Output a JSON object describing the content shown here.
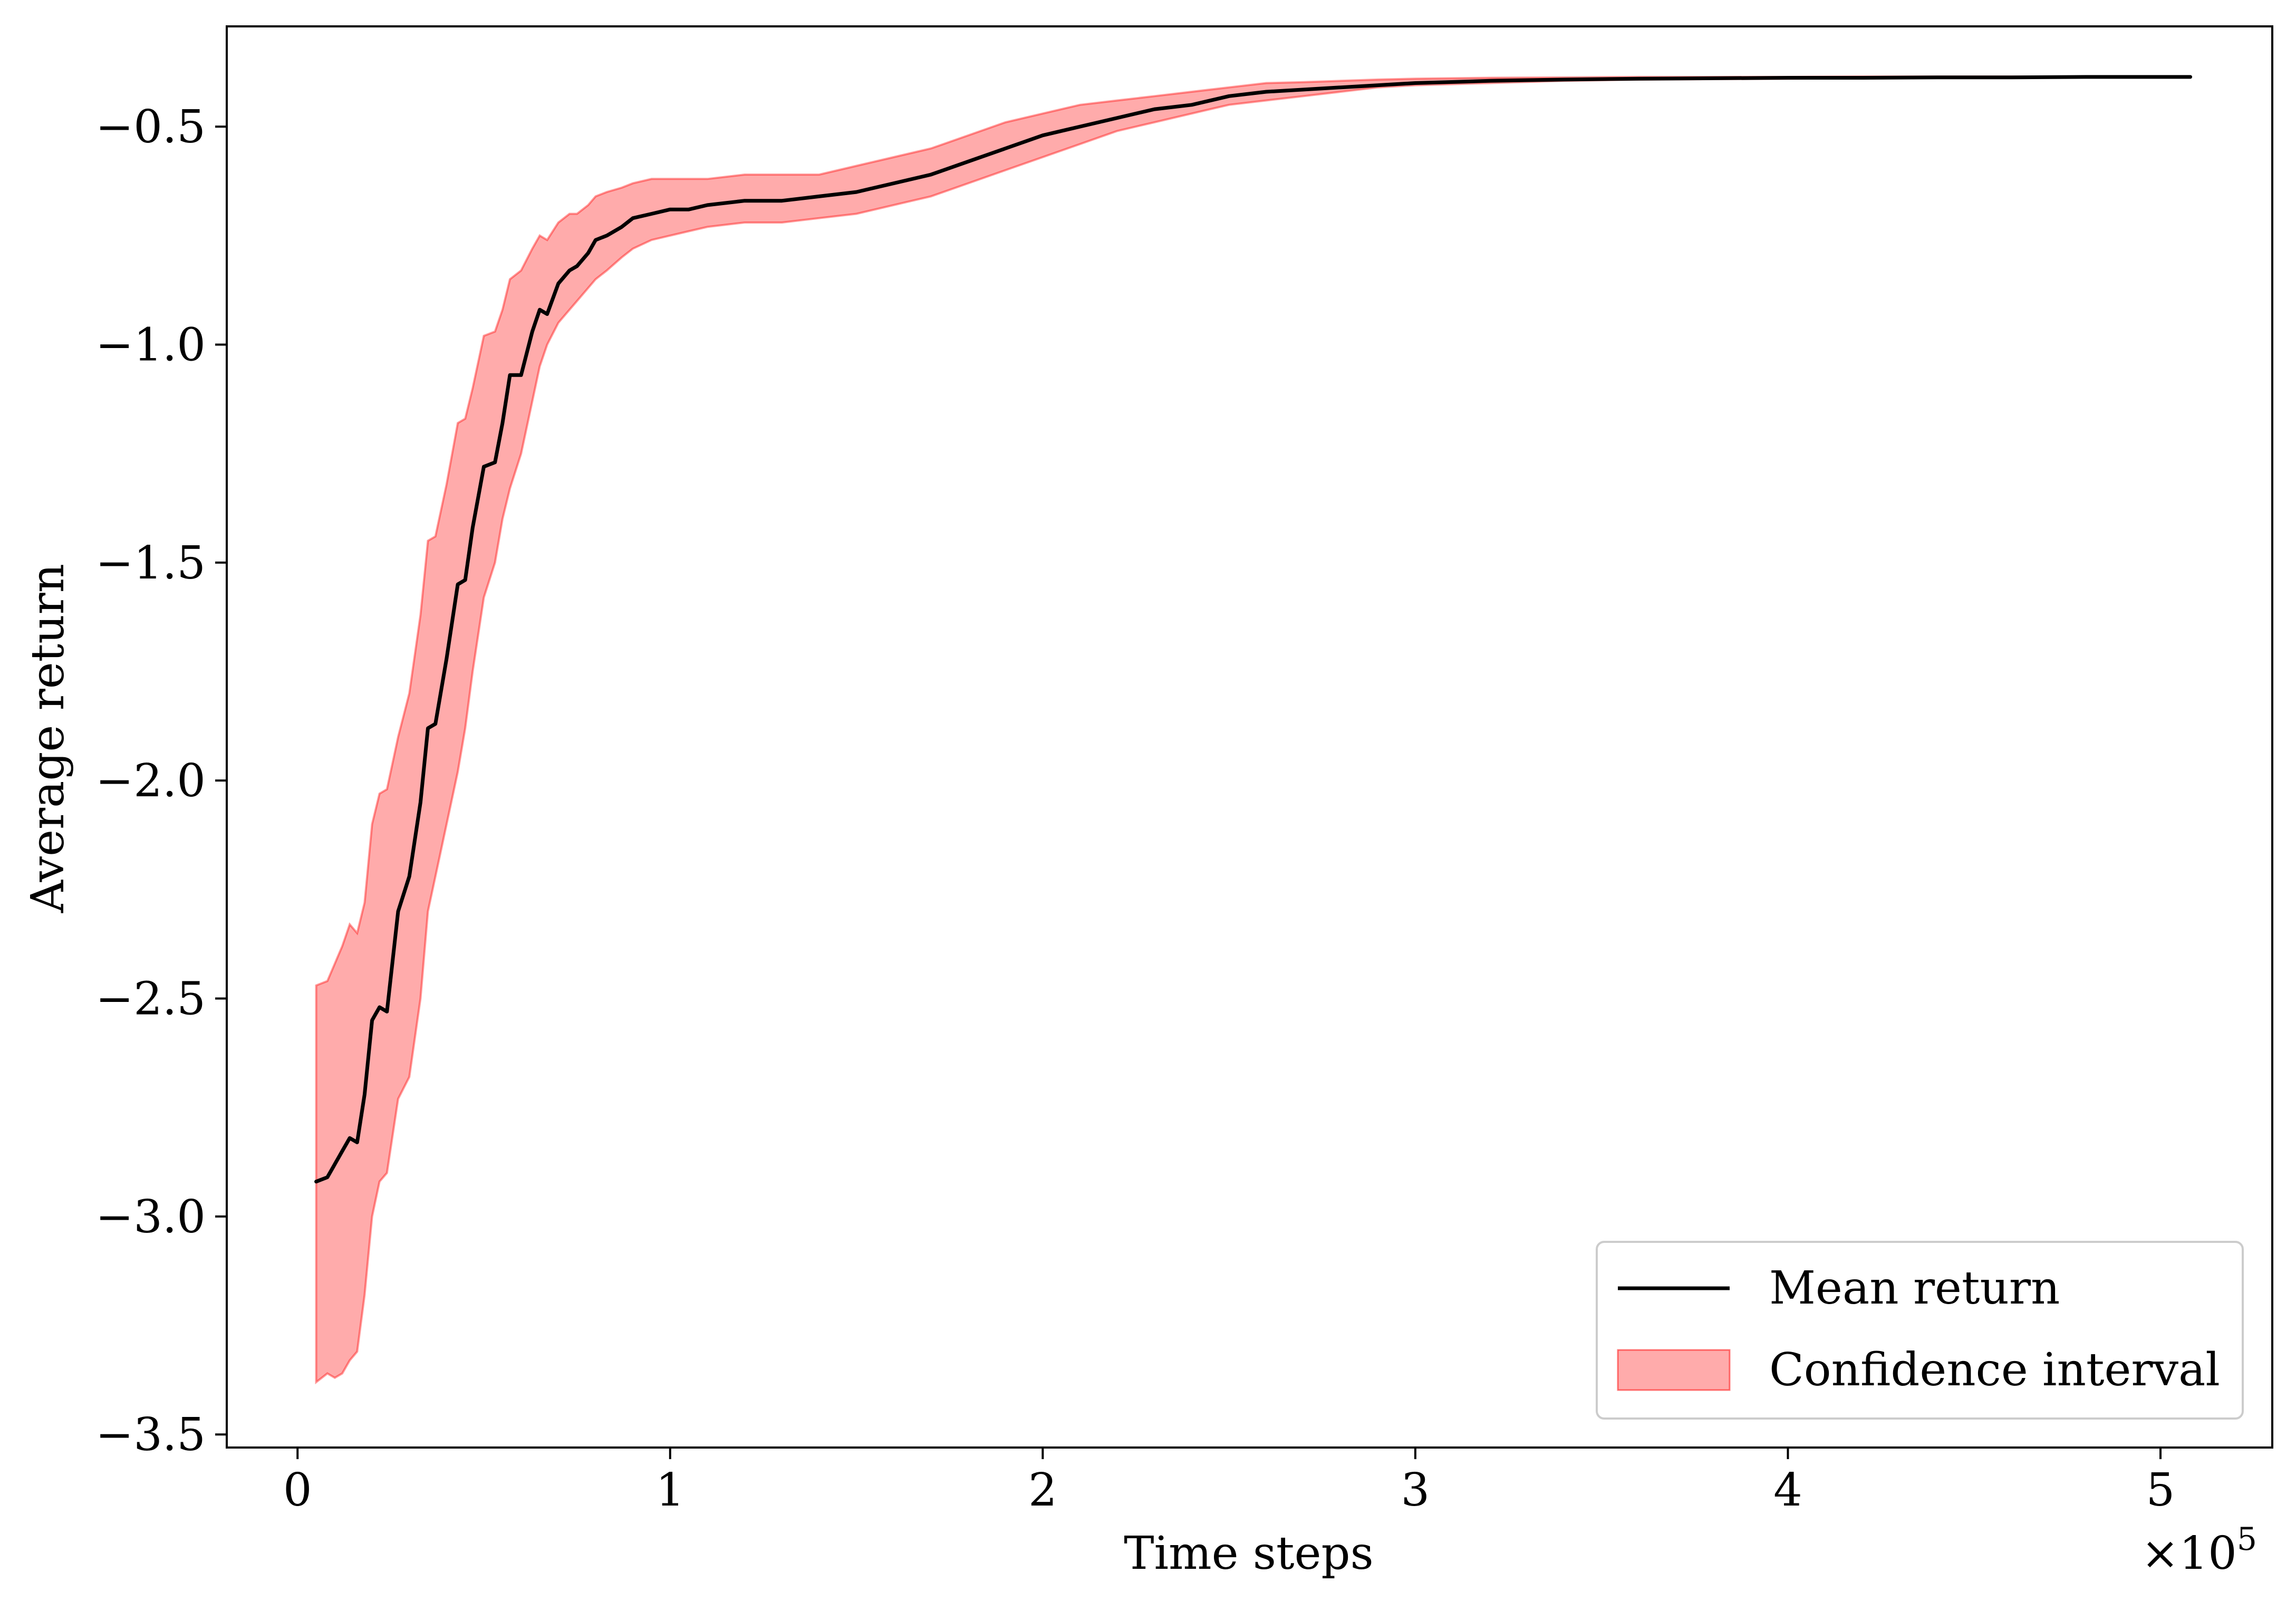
{
  "chart_data": {
    "type": "line",
    "title": "",
    "xlabel": "Time steps",
    "ylabel": "Average return",
    "x_multiplier_label": "×10",
    "x_multiplier_exponent": "5",
    "xlim": [
      -0.19,
      5.3
    ],
    "ylim": [
      -3.53,
      -0.27
    ],
    "x_ticks": [
      0,
      1,
      2,
      3,
      4,
      5
    ],
    "x_tick_labels": [
      "0",
      "1",
      "2",
      "3",
      "4",
      "5"
    ],
    "y_ticks": [
      -0.5,
      -1.0,
      -1.5,
      -2.0,
      -2.5,
      -3.0,
      -3.5
    ],
    "y_tick_labels": [
      "−0.5",
      "−1.0",
      "−1.5",
      "−2.0",
      "−2.5",
      "−3.0",
      "−3.5"
    ],
    "grid": false,
    "legend_position": "bottom-right",
    "series": [
      {
        "name": "Mean return",
        "kind": "line",
        "color": "#000000",
        "x": [
          0.05,
          0.08,
          0.1,
          0.12,
          0.14,
          0.16,
          0.18,
          0.2,
          0.22,
          0.24,
          0.27,
          0.3,
          0.33,
          0.35,
          0.37,
          0.4,
          0.43,
          0.45,
          0.47,
          0.5,
          0.53,
          0.55,
          0.57,
          0.6,
          0.63,
          0.65,
          0.67,
          0.7,
          0.73,
          0.75,
          0.78,
          0.8,
          0.83,
          0.87,
          0.9,
          0.95,
          1.0,
          1.05,
          1.1,
          1.2,
          1.3,
          1.4,
          1.5,
          1.6,
          1.7,
          1.8,
          1.9,
          2.0,
          2.1,
          2.2,
          2.3,
          2.4,
          2.5,
          2.6,
          2.7,
          2.8,
          2.9,
          3.0,
          3.2,
          3.4,
          3.6,
          3.8,
          4.0,
          4.2,
          4.4,
          4.6,
          4.8,
          5.0,
          5.08
        ],
        "y": [
          -2.92,
          -2.91,
          -2.88,
          -2.85,
          -2.82,
          -2.83,
          -2.72,
          -2.55,
          -2.52,
          -2.53,
          -2.3,
          -2.22,
          -2.05,
          -1.88,
          -1.87,
          -1.72,
          -1.55,
          -1.54,
          -1.42,
          -1.28,
          -1.27,
          -1.18,
          -1.07,
          -1.07,
          -0.97,
          -0.92,
          -0.93,
          -0.86,
          -0.83,
          -0.82,
          -0.79,
          -0.76,
          -0.75,
          -0.73,
          -0.71,
          -0.7,
          -0.69,
          -0.69,
          -0.68,
          -0.67,
          -0.67,
          -0.66,
          -0.65,
          -0.63,
          -0.61,
          -0.58,
          -0.55,
          -0.52,
          -0.5,
          -0.48,
          -0.46,
          -0.45,
          -0.43,
          -0.42,
          -0.415,
          -0.41,
          -0.405,
          -0.4,
          -0.395,
          -0.392,
          -0.39,
          -0.389,
          -0.388,
          -0.388,
          -0.387,
          -0.387,
          -0.386,
          -0.386,
          -0.386
        ]
      },
      {
        "name": "Confidence interval",
        "kind": "band",
        "color": "#ff0000",
        "x": [
          0.05,
          0.08,
          0.1,
          0.12,
          0.14,
          0.16,
          0.18,
          0.2,
          0.22,
          0.24,
          0.27,
          0.3,
          0.33,
          0.35,
          0.37,
          0.4,
          0.43,
          0.45,
          0.47,
          0.5,
          0.53,
          0.55,
          0.57,
          0.6,
          0.63,
          0.65,
          0.67,
          0.7,
          0.73,
          0.75,
          0.78,
          0.8,
          0.83,
          0.87,
          0.9,
          0.95,
          1.0,
          1.05,
          1.1,
          1.2,
          1.3,
          1.4,
          1.5,
          1.6,
          1.7,
          1.8,
          1.9,
          2.0,
          2.1,
          2.2,
          2.3,
          2.4,
          2.5,
          2.6,
          2.7,
          2.8,
          2.9,
          3.0,
          3.2,
          3.4,
          3.6,
          3.8,
          4.0,
          4.2,
          4.4,
          4.6,
          4.8,
          5.0,
          5.08
        ],
        "lower": [
          -3.38,
          -3.36,
          -3.37,
          -3.36,
          -3.33,
          -3.31,
          -3.18,
          -3.0,
          -2.92,
          -2.9,
          -2.73,
          -2.68,
          -2.5,
          -2.3,
          -2.22,
          -2.1,
          -1.98,
          -1.88,
          -1.75,
          -1.58,
          -1.5,
          -1.4,
          -1.33,
          -1.25,
          -1.13,
          -1.05,
          -1.0,
          -0.95,
          -0.92,
          -0.9,
          -0.87,
          -0.85,
          -0.83,
          -0.8,
          -0.78,
          -0.76,
          -0.75,
          -0.74,
          -0.73,
          -0.72,
          -0.72,
          -0.71,
          -0.7,
          -0.68,
          -0.66,
          -0.63,
          -0.6,
          -0.57,
          -0.54,
          -0.51,
          -0.49,
          -0.47,
          -0.45,
          -0.44,
          -0.43,
          -0.42,
          -0.41,
          -0.405,
          -0.4,
          -0.395,
          -0.392,
          -0.391,
          -0.39,
          -0.389,
          -0.388,
          -0.388,
          -0.387,
          -0.387,
          -0.387
        ],
        "upper": [
          -2.47,
          -2.46,
          -2.42,
          -2.38,
          -2.33,
          -2.35,
          -2.28,
          -2.1,
          -2.03,
          -2.02,
          -1.9,
          -1.8,
          -1.62,
          -1.45,
          -1.44,
          -1.32,
          -1.18,
          -1.17,
          -1.1,
          -0.98,
          -0.97,
          -0.92,
          -0.85,
          -0.83,
          -0.78,
          -0.75,
          -0.76,
          -0.72,
          -0.7,
          -0.7,
          -0.68,
          -0.66,
          -0.65,
          -0.64,
          -0.63,
          -0.62,
          -0.62,
          -0.62,
          -0.62,
          -0.61,
          -0.61,
          -0.61,
          -0.59,
          -0.57,
          -0.55,
          -0.52,
          -0.49,
          -0.47,
          -0.45,
          -0.44,
          -0.43,
          -0.42,
          -0.41,
          -0.4,
          -0.398,
          -0.395,
          -0.392,
          -0.39,
          -0.388,
          -0.387,
          -0.386,
          -0.386,
          -0.386,
          -0.385,
          -0.385,
          -0.385,
          -0.385,
          -0.385,
          -0.385
        ]
      }
    ]
  }
}
